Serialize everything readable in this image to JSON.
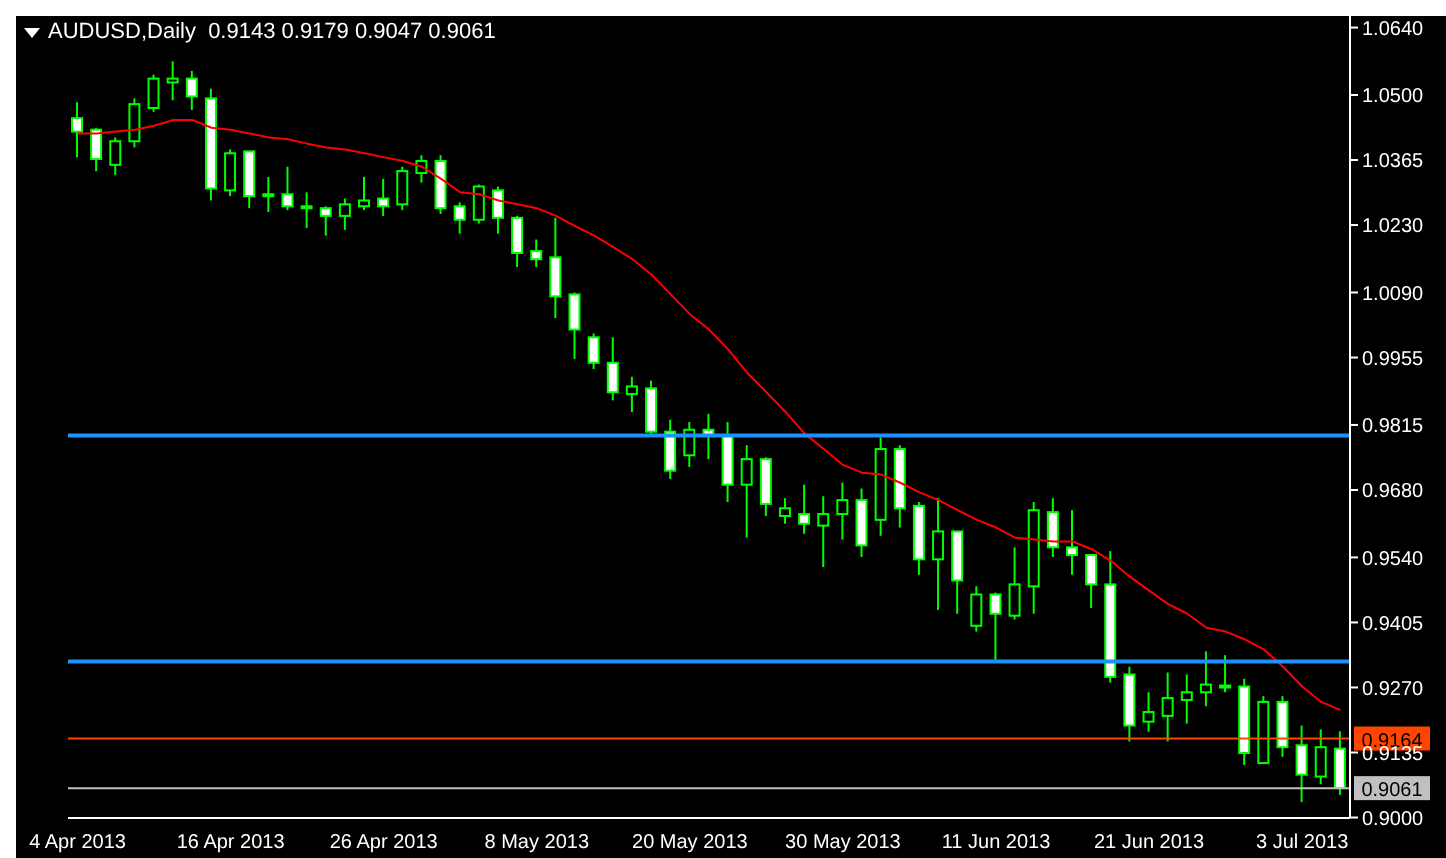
{
  "chart_data": {
    "type": "candlestick",
    "title": "AUDUSD,Daily  0.9143 0.9179 0.9047 0.9061",
    "color": "#00ff00",
    "categories": [
      "4 Apr 2013",
      null,
      null,
      null,
      null,
      null,
      null,
      null,
      "16 Apr 2013",
      null,
      null,
      null,
      null,
      null,
      null,
      null,
      "26 Apr 2013",
      null,
      null,
      null,
      null,
      null,
      null,
      null,
      "8 May 2013",
      null,
      null,
      null,
      null,
      null,
      null,
      null,
      "20 May 2013",
      null,
      null,
      null,
      null,
      null,
      null,
      null,
      "30 May 2013",
      null,
      null,
      null,
      null,
      null,
      null,
      null,
      "11 Jun 2013",
      null,
      null,
      null,
      null,
      null,
      null,
      null,
      "21 Jun 2013",
      null,
      null,
      null,
      null,
      null,
      null,
      null,
      "3 Jul 2013",
      null,
      null
    ],
    "ohlc": [
      [
        1.0452,
        1.0485,
        1.0371,
        1.0424
      ],
      [
        1.0428,
        1.0432,
        1.0342,
        1.0367
      ],
      [
        1.0355,
        1.0412,
        1.0334,
        1.0404
      ],
      [
        1.0404,
        1.0493,
        1.0391,
        1.0481
      ],
      [
        1.0473,
        1.0542,
        1.0465,
        1.0534
      ],
      [
        1.0526,
        1.057,
        1.0489,
        1.0534
      ],
      [
        1.0534,
        1.055,
        1.0469,
        1.0497
      ],
      [
        1.0493,
        1.0513,
        1.0281,
        1.0306
      ],
      [
        1.0302,
        1.0387,
        1.029,
        1.0379
      ],
      [
        1.0383,
        1.0383,
        1.0265,
        1.029
      ],
      [
        1.029,
        1.033,
        1.0257,
        1.0294
      ],
      [
        1.0294,
        1.0351,
        1.0261,
        1.0269
      ],
      [
        1.0265,
        1.0298,
        1.0224,
        1.0269
      ],
      [
        1.0265,
        1.0269,
        1.0208,
        1.0249
      ],
      [
        1.0249,
        1.0285,
        1.022,
        1.0273
      ],
      [
        1.0269,
        1.033,
        1.0261,
        1.0281
      ],
      [
        1.0285,
        1.0326,
        1.0249,
        1.0269
      ],
      [
        1.0273,
        1.0351,
        1.0261,
        1.0342
      ],
      [
        1.0338,
        1.0375,
        1.0318,
        1.0363
      ],
      [
        1.0363,
        1.0375,
        1.0253,
        1.0265
      ],
      [
        1.0269,
        1.0277,
        1.0212,
        1.0241
      ],
      [
        1.0241,
        1.0314,
        1.0233,
        1.031
      ],
      [
        1.0302,
        1.031,
        1.0212,
        1.0245
      ],
      [
        1.0245,
        1.0249,
        1.0143,
        1.0172
      ],
      [
        1.0176,
        1.02,
        1.0143,
        1.0159
      ],
      [
        1.0163,
        1.0245,
        1.0037,
        1.0082
      ],
      [
        1.0086,
        1.009,
        0.9952,
        1.0013
      ],
      [
        0.9997,
        1.0005,
        0.9931,
        0.9944
      ],
      [
        0.9944,
        0.9997,
        0.9866,
        0.9883
      ],
      [
        0.9879,
        0.9915,
        0.9842,
        0.9895
      ],
      [
        0.9891,
        0.9907,
        0.9797,
        0.9801
      ],
      [
        0.9801,
        0.9826,
        0.9703,
        0.972
      ],
      [
        0.9752,
        0.9821,
        0.9728,
        0.9805
      ],
      [
        0.9805,
        0.9838,
        0.9744,
        0.9793
      ],
      [
        0.9793,
        0.9821,
        0.9655,
        0.9691
      ],
      [
        0.9691,
        0.9773,
        0.9581,
        0.9744
      ],
      [
        0.9744,
        0.9748,
        0.9626,
        0.9651
      ],
      [
        0.9626,
        0.9663,
        0.961,
        0.9642
      ],
      [
        0.963,
        0.9691,
        0.9589,
        0.961
      ],
      [
        0.9606,
        0.9667,
        0.952,
        0.963
      ],
      [
        0.963,
        0.9695,
        0.9577,
        0.9659
      ],
      [
        0.9659,
        0.9683,
        0.9541,
        0.9565
      ],
      [
        0.9618,
        0.9789,
        0.9585,
        0.9765
      ],
      [
        0.9765,
        0.9773,
        0.9602,
        0.9642
      ],
      [
        0.9647,
        0.9655,
        0.9504,
        0.9536
      ],
      [
        0.9536,
        0.9663,
        0.9431,
        0.9594
      ],
      [
        0.9594,
        0.9594,
        0.9423,
        0.9492
      ],
      [
        0.9398,
        0.948,
        0.9386,
        0.9463
      ],
      [
        0.9463,
        0.9467,
        0.9321,
        0.9423
      ],
      [
        0.9419,
        0.9561,
        0.9411,
        0.9484
      ],
      [
        0.948,
        0.9655,
        0.9423,
        0.9638
      ],
      [
        0.9634,
        0.9663,
        0.9541,
        0.9561
      ],
      [
        0.9561,
        0.9638,
        0.9504,
        0.9545
      ],
      [
        0.9545,
        0.9545,
        0.9435,
        0.9484
      ],
      [
        0.9484,
        0.9553,
        0.928,
        0.9292
      ],
      [
        0.9297,
        0.9313,
        0.9158,
        0.9191
      ],
      [
        0.9199,
        0.926,
        0.9178,
        0.9219
      ],
      [
        0.9211,
        0.9301,
        0.9158,
        0.9248
      ],
      [
        0.9244,
        0.9297,
        0.9195,
        0.926
      ],
      [
        0.926,
        0.9345,
        0.9231,
        0.9276
      ],
      [
        0.9272,
        0.9337,
        0.926,
        0.9274
      ],
      [
        0.9272,
        0.9288,
        0.9109,
        0.9134
      ],
      [
        0.9113,
        0.9252,
        0.9113,
        0.924
      ],
      [
        0.924,
        0.9252,
        0.9126,
        0.9146
      ],
      [
        0.915,
        0.9191,
        0.9032,
        0.9089
      ],
      [
        0.9085,
        0.9183,
        0.9069,
        0.9146
      ],
      [
        0.9143,
        0.9179,
        0.9047,
        0.9061
      ]
    ],
    "series": [
      {
        "type": "line",
        "color": "#ff0000",
        "values": [
          1.042,
          1.042,
          1.0424,
          1.0428,
          1.0436,
          1.0448,
          1.0448,
          1.0432,
          1.0428,
          1.042,
          1.0412,
          1.0408,
          1.0399,
          1.0391,
          1.0387,
          1.0379,
          1.0371,
          1.0363,
          1.0351,
          1.0326,
          1.0298,
          1.0294,
          1.0281,
          1.0273,
          1.0265,
          1.0249,
          1.0228,
          1.0208,
          1.0184,
          1.0159,
          1.0127,
          1.0086,
          1.0045,
          1.0013,
          0.9972,
          0.9923,
          0.9883,
          0.9842,
          0.9797,
          0.9765,
          0.9732,
          0.9716,
          0.9712,
          0.9695,
          0.9675,
          0.9659,
          0.9638,
          0.9618,
          0.9602,
          0.9581,
          0.9577,
          0.9573,
          0.9573,
          0.9557,
          0.9533,
          0.95,
          0.9471,
          0.9443,
          0.9423,
          0.9394,
          0.9386,
          0.937,
          0.9349,
          0.9313,
          0.9272,
          0.924,
          0.9223
        ]
      }
    ],
    "ylim": [
      0.8999,
      1.0664
    ],
    "yticks": [
      {
        "value": 1.064,
        "label": "1.0640"
      },
      {
        "value": 1.05,
        "label": "1.0500"
      },
      {
        "value": 1.0365,
        "label": "1.0365"
      },
      {
        "value": 1.023,
        "label": "1.0230"
      },
      {
        "value": 1.009,
        "label": "1.0090"
      },
      {
        "value": 0.9955,
        "label": "0.9955"
      },
      {
        "value": 0.9815,
        "label": "0.9815"
      },
      {
        "value": 0.968,
        "label": "0.9680"
      },
      {
        "value": 0.954,
        "label": "0.9540"
      },
      {
        "value": 0.9405,
        "label": "0.9405"
      },
      {
        "value": 0.927,
        "label": "0.9270"
      },
      {
        "value": 0.9135,
        "label": "0.9135"
      },
      {
        "value": 0.9,
        "label": "0.9000"
      }
    ],
    "ref_lines": [
      {
        "axis": "y",
        "value": 0.9793,
        "color": "#1e90ff"
      },
      {
        "axis": "y",
        "value": 0.9324,
        "color": "#1e90ff"
      },
      {
        "axis": "y",
        "value": 0.9164,
        "label": "0.9164",
        "color": "#ff4500"
      },
      {
        "axis": "y",
        "value": 0.9061,
        "label": "0.9061",
        "color": "#c0c0c0"
      }
    ],
    "marker": "none",
    "grid": false,
    "legend": false
  }
}
